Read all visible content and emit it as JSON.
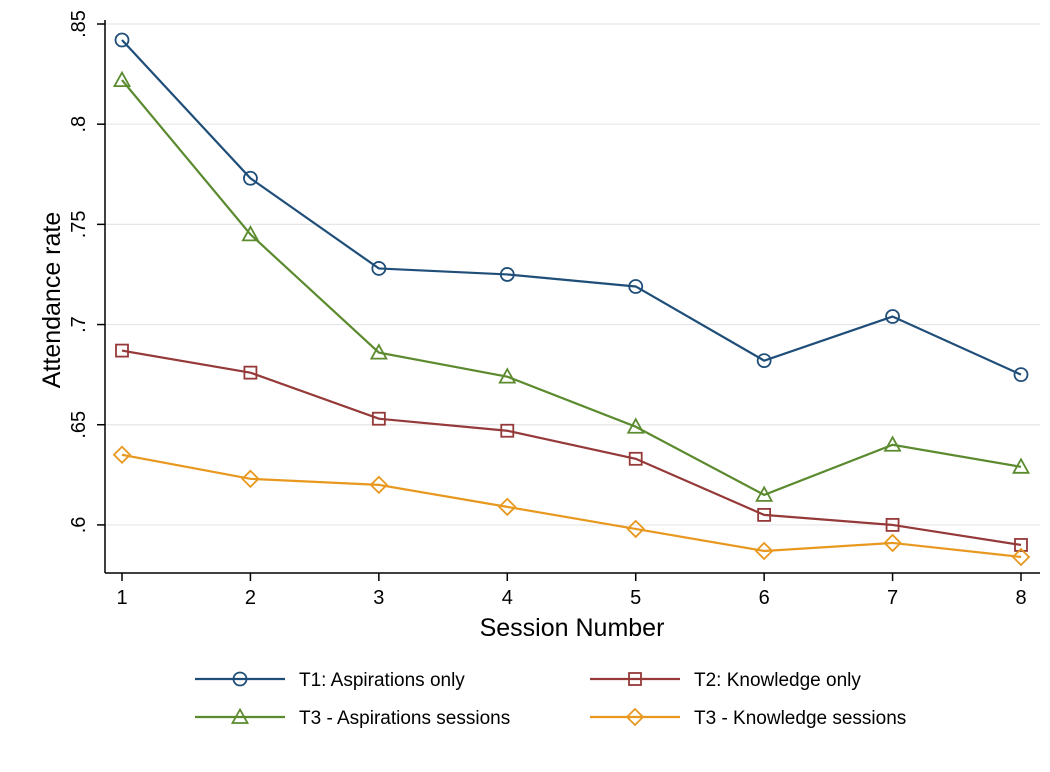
{
  "chart_data": {
    "type": "line",
    "title": "",
    "xlabel": "Session Number",
    "ylabel": "Attendance rate",
    "x": [
      1,
      2,
      3,
      4,
      5,
      6,
      7,
      8
    ],
    "xticks": [
      "1",
      "2",
      "3",
      "4",
      "5",
      "6",
      "7",
      "8"
    ],
    "yticks": [
      0.6,
      0.65,
      0.7,
      0.75,
      0.8,
      0.85
    ],
    "ytick_labels": [
      ".6",
      ".65",
      ".7",
      ".75",
      ".8",
      ".85"
    ],
    "xlim": [
      0.98,
      8.05
    ],
    "ylim": [
      0.576,
      0.852
    ],
    "grid": true,
    "legend_position": "bottom",
    "series": [
      {
        "name": "T1: Aspirations only",
        "color": "#1f4e79",
        "marker": "circle",
        "values": [
          0.842,
          0.773,
          0.728,
          0.725,
          0.719,
          0.682,
          0.704,
          0.675
        ]
      },
      {
        "name": "T2: Knowledge only",
        "color": "#953939",
        "marker": "square",
        "values": [
          0.687,
          0.676,
          0.653,
          0.647,
          0.633,
          0.605,
          0.6,
          0.59
        ]
      },
      {
        "name": "T3 - Aspirations sessions",
        "color": "#5b8a2f",
        "marker": "triangle",
        "values": [
          0.822,
          0.745,
          0.686,
          0.674,
          0.649,
          0.615,
          0.64,
          0.629
        ]
      },
      {
        "name": "T3 - Knowledge sessions",
        "color": "#e8981e",
        "marker": "diamond",
        "values": [
          0.635,
          0.623,
          0.62,
          0.609,
          0.598,
          0.587,
          0.591,
          0.584
        ]
      }
    ]
  }
}
